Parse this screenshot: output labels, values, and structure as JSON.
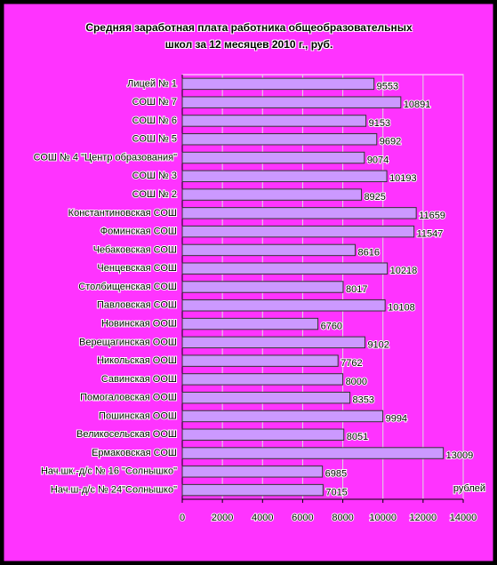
{
  "chart_data": {
    "type": "bar",
    "orientation": "horizontal",
    "title": "Средняя заработная плата работника общеобразовательных школ за 12 месяцев 2010 г., руб.",
    "x_label": "рублей",
    "categories": [
      "Лицей № 1",
      "СОШ № 7",
      "СОШ № 6",
      "СОШ № 5",
      "СОШ № 4 \"Центр образования\"",
      "СОШ № 3",
      "СОШ № 2",
      "Константиновская СОШ",
      "Фоминская СОШ",
      "Чебаковская СОШ",
      "Ченцевская СОШ",
      "Столбищенская СОШ",
      "Павловская СОШ",
      "Новинская ООШ",
      "Верещагинская ООШ",
      "Никольская ООШ",
      "Савинская ООШ",
      "Помогаловская ООШ",
      "Пошинская ООШ",
      "Великосельская ООШ",
      "Ермаковская СОШ",
      "Нач.шк.-д/с № 16 \"Солнышко\"",
      "Нач.ш-д/с № 24\"Солнышко\""
    ],
    "values": [
      9553,
      10891,
      9153,
      9692,
      9074,
      10193,
      8925,
      11659,
      11547,
      8616,
      10218,
      8017,
      10108,
      6760,
      9102,
      7762,
      8000,
      8353,
      9994,
      8051,
      13009,
      6985,
      7015
    ],
    "color": "#cc99ff",
    "xlim": [
      0,
      14000
    ],
    "xticks": [
      0,
      2000,
      4000,
      6000,
      8000,
      10000,
      12000,
      14000
    ],
    "grid": true
  }
}
